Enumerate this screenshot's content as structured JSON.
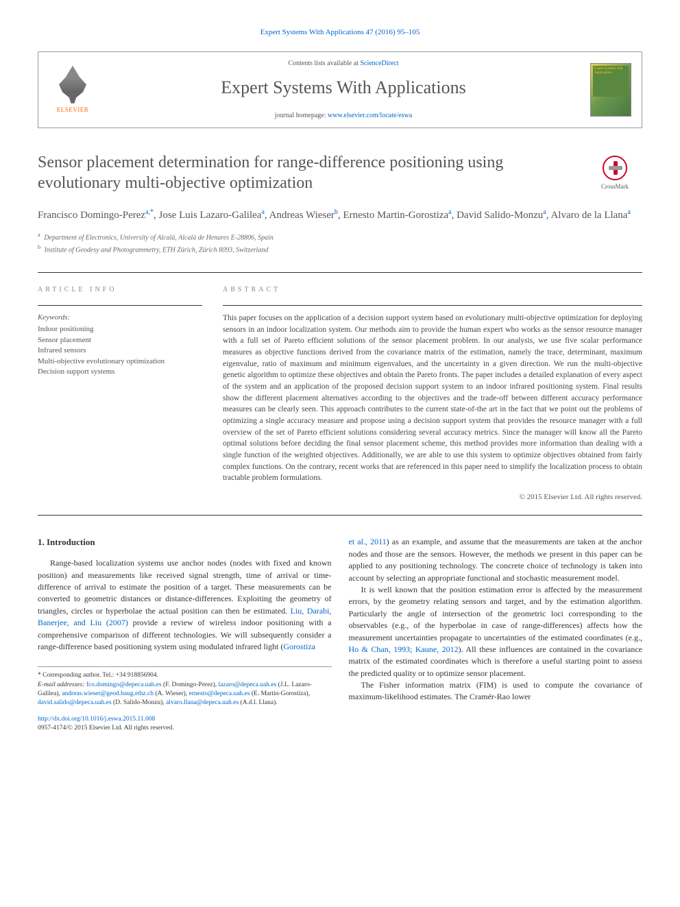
{
  "journal_ref": "Expert Systems With Applications 47 (2016) 95–105",
  "header": {
    "elsevier": "ELSEVIER",
    "contents_prefix": "Contents lists available at ",
    "contents_link": "ScienceDirect",
    "journal_title": "Expert Systems With Applications",
    "homepage_prefix": "journal homepage: ",
    "homepage_link": "www.elsevier.com/locate/eswa",
    "cover_text": "Expert\nSystems\nwith\nApplications"
  },
  "crossmark": "CrossMark",
  "title": "Sensor placement determination for range-difference positioning using evolutionary multi-objective optimization",
  "authors_html": "Francisco Domingo-Perez<sup>a,*</sup>, Jose Luis Lazaro-Galilea<sup>a</sup>, Andreas Wieser<sup>b</sup>, Ernesto Martin-Gorostiza<sup>a</sup>, David Salido-Monzu<sup>a</sup>, Alvaro de la Llana<sup>a</sup>",
  "affiliations": [
    {
      "sup": "a",
      "text": "Department of Electronics, University of Alcalá, Alcalá de Henares E-28806, Spain"
    },
    {
      "sup": "b",
      "text": "Institute of Geodesy and Photogrammetry, ETH Zürich, Zürich 8093, Switzerland"
    }
  ],
  "info_label": "article info",
  "abstract_label": "abstract",
  "keywords_label": "Keywords:",
  "keywords": [
    "Indoor positioning",
    "Sensor placement",
    "Infrared sensors",
    "Multi-objective evolutionary optimization",
    "Decision support systems"
  ],
  "abstract": "This paper focuses on the application of a decision support system based on evolutionary multi-objective optimization for deploying sensors in an indoor localization system. Our methods aim to provide the human expert who works as the sensor resource manager with a full set of Pareto efficient solutions of the sensor placement problem. In our analysis, we use five scalar performance measures as objective functions derived from the covariance matrix of the estimation, namely the trace, determinant, maximum eigenvalue, ratio of maximum and minimum eigenvalues, and the uncertainty in a given direction. We run the multi-objective genetic algorithm to optimize these objectives and obtain the Pareto fronts. The paper includes a detailed explanation of every aspect of the system and an application of the proposed decision support system to an indoor infrared positioning system. Final results show the different placement alternatives according to the objectives and the trade-off between different accuracy performance measures can be clearly seen. This approach contributes to the current state-of-the art in the fact that we point out the problems of optimizing a single accuracy measure and propose using a decision support system that provides the resource manager with a full overview of the set of Pareto efficient solutions considering several accuracy metrics. Since the manager will know all the Pareto optimal solutions before deciding the final sensor placement scheme, this method provides more information than dealing with a single function of the weighted objectives. Additionally, we are able to use this system to optimize objectives obtained from fairly complex functions. On the contrary, recent works that are referenced in this paper need to simplify the localization process to obtain tractable problem formulations.",
  "copyright": "© 2015 Elsevier Ltd. All rights reserved.",
  "intro_heading": "1. Introduction",
  "col1_p1_a": "Range-based localization systems use anchor nodes (nodes with fixed and known position) and measurements like received signal strength, time of arrival or time-difference of arrival to estimate the position of a target. These measurements can be converted to geometric distances or distance-differences. Exploiting the geometry of triangles, circles or hyperbolae the actual position can then be estimated. ",
  "col1_link1": "Liu, Darabi, Banerjee, and Liu (2007)",
  "col1_p1_b": " provide a review of wireless indoor positioning with a comprehensive comparison of different technologies. We will subsequently consider a range-difference based positioning system using modulated infrared light (",
  "col1_link2": "Gorostiza",
  "col2_link1": "et al., 2011",
  "col2_p1": ") as an example, and assume that the measurements are taken at the anchor nodes and those are the sensors. However, the methods we present in this paper can be applied to any positioning technology. The concrete choice of technology is taken into account by selecting an appropriate functional and stochastic measurement model.",
  "col2_p2_a": "It is well known that the position estimation error is affected by the measurement errors, by the geometry relating sensors and target, and by the estimation algorithm. Particularly the angle of intersection of the geometric loci corresponding to the observables (e.g., of the hyperbolae in case of range-differences) affects how the measurement uncertainties propagate to uncertainties of the estimated coordinates (e.g., ",
  "col2_link2": "Ho & Chan, 1993; Kaune, 2012",
  "col2_p2_b": "). All these influences are contained in the covariance matrix of the estimated coordinates which is therefore a useful starting point to assess the predicted quality or to optimize sensor placement.",
  "col2_p3": "The Fisher information matrix (FIM) is used to compute the covariance of maximum-likelihood estimates. The Cramér-Rao lower",
  "footnotes": {
    "corr": "* Corresponding author. Tel.: +34 918856904.",
    "email_label": "E-mail addresses: ",
    "emails": [
      {
        "addr": "fco.domingo@depeca.uah.es",
        "who": " (F. Domingo-Perez), "
      },
      {
        "addr": "lazaro@depeca.uah.es",
        "who": " (J.L. Lazaro-Galilea), "
      },
      {
        "addr": "andreas.wieser@geod.baug.ethz.ch",
        "who": " (A. Wieser), "
      },
      {
        "addr": "ernesto@depeca.uah.es",
        "who": " (E. Martin-Gorostiza), "
      },
      {
        "addr": "david.salido@depeca.uah.es",
        "who": " (D. Salido-Monzu), "
      },
      {
        "addr": "alvaro.llana@depeca.uah.es",
        "who": " (A.d.l. Llana)."
      }
    ]
  },
  "doi": "http://dx.doi.org/10.1016/j.eswa.2015.11.008",
  "issn": "0957-4174/© 2015 Elsevier Ltd. All rights reserved.",
  "colors": {
    "link": "#0066cc",
    "text": "#333333",
    "heading": "#555555",
    "orange": "#ff6600",
    "crossmark_red": "#cc0033"
  }
}
